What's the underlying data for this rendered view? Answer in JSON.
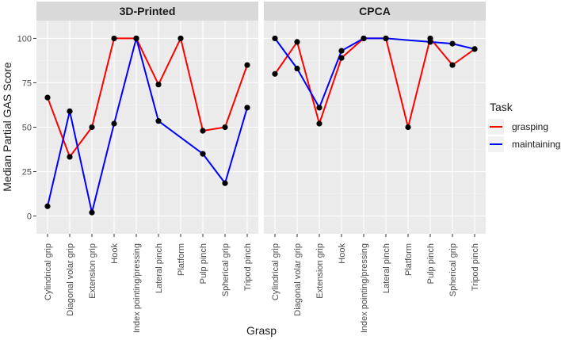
{
  "chart_data": {
    "type": "line",
    "xlabel": "Grasp",
    "ylabel": "Median Partial GAS Score",
    "ylim": [
      -10,
      110
    ],
    "yticks": [
      "0",
      "25",
      "50",
      "75",
      "100"
    ],
    "grid": true,
    "legend": {
      "title": "Task",
      "position": "right"
    },
    "categories": [
      "Cylindrical grip",
      "Diagonal volar grip",
      "Extension grip",
      "Hook",
      "Index pointing/pressing",
      "Lateral pinch",
      "Platform",
      "Pulp pinch",
      "Spherical grip",
      "Tripod pinch"
    ],
    "series_colors": {
      "grasping": "#ff0000",
      "maintaining": "#0000ff"
    },
    "panels": [
      {
        "title": "3D-Printed",
        "series": [
          {
            "name": "grasping",
            "values": [
              66.7,
              33.3,
              50,
              100,
              100,
              74,
              100,
              48,
              50,
              85
            ]
          },
          {
            "name": "maintaining",
            "values": [
              5.5,
              59,
              2,
              52,
              100,
              53.5,
              null,
              35,
              18.5,
              61
            ]
          }
        ]
      },
      {
        "title": "CPCA",
        "series": [
          {
            "name": "grasping",
            "values": [
              80,
              98,
              52,
              89,
              100,
              100,
              50,
              100,
              85,
              94
            ]
          },
          {
            "name": "maintaining",
            "values": [
              100,
              83,
              61,
              93,
              100,
              100,
              null,
              98,
              97,
              94
            ]
          }
        ]
      }
    ]
  }
}
